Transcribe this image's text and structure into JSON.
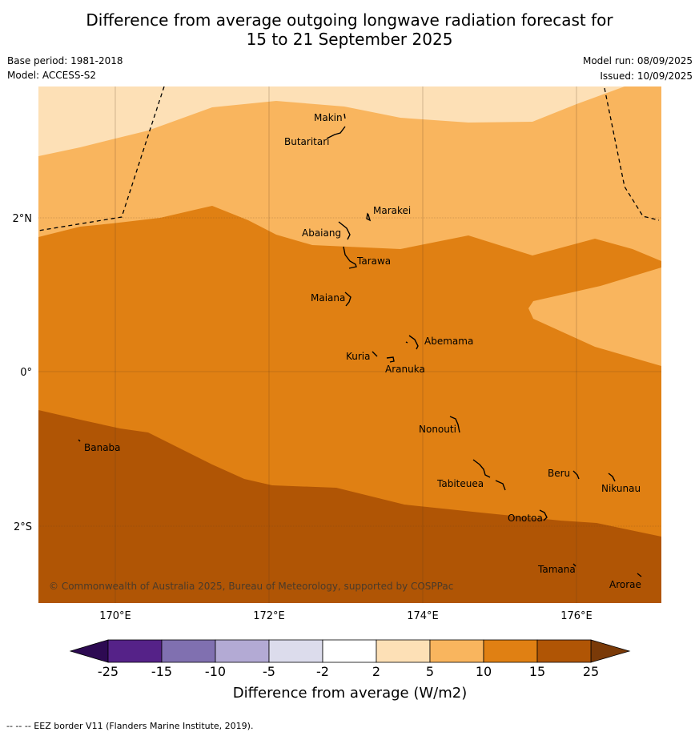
{
  "title_line1": "Difference from average outgoing longwave radiation forecast for",
  "title_line2": "15 to 21 September 2025",
  "base_period": "Base period: 1981-2018",
  "model": "Model: ACCESS-S2",
  "model_run": "Model run: 08/09/2025",
  "issued": "Issued: 10/09/2025",
  "copyright": "© Commonwealth of Australia 2025, Bureau of Meteorology, supported by COSPPac",
  "lat_ticks": [
    "2°N",
    "0°",
    "2°S"
  ],
  "lon_ticks": [
    "170°E",
    "172°E",
    "174°E",
    "176°E"
  ],
  "places": [
    "Makin",
    "Butaritari",
    "Marakei",
    "Abaiang",
    "Tarawa",
    "Maiana",
    "Abemama",
    "Kuria",
    "Aranuka",
    "Banaba",
    "Nonouti",
    "Beru",
    "Nikunau",
    "Tabiteuea",
    "Onotoa",
    "Tamana",
    "Arorae"
  ],
  "colorbar": {
    "ticks": [
      "-25",
      "-15",
      "-10",
      "-5",
      "-2",
      "2",
      "5",
      "10",
      "15",
      "25"
    ],
    "colors": [
      "#552288",
      "#8070b0",
      "#b3aad4",
      "#dcdcec",
      "#ffffff",
      "#fde0b6",
      "#f9b55e",
      "#e08013",
      "#b05505"
    ],
    "low_extend_color": "#2d0a52",
    "high_extend_color": "#7a3a08",
    "title": "Difference from average (W/m2)"
  },
  "legend_footnote": "--  --  -- EEZ border V11 (Flanders Marine Institute, 2019)."
}
